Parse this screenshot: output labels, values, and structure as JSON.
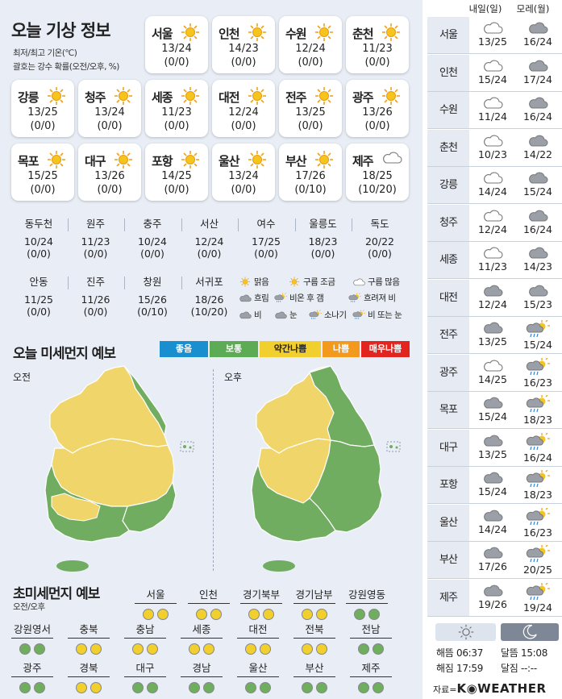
{
  "header": {
    "title": "오늘 기상 정보",
    "line1": "최저/최고 기온(℃)",
    "line2": "괄호는 강수 확률(오전/오후, %)"
  },
  "cards": [
    {
      "city": "서울",
      "temp": "13/24",
      "prob": "(0/0)",
      "icon": "sun-icon"
    },
    {
      "city": "인천",
      "temp": "14/23",
      "prob": "(0/0)",
      "icon": "sun-icon"
    },
    {
      "city": "수원",
      "temp": "12/24",
      "prob": "(0/0)",
      "icon": "sun-icon"
    },
    {
      "city": "춘천",
      "temp": "11/23",
      "prob": "(0/0)",
      "icon": "sun-icon"
    },
    {
      "city": "강릉",
      "temp": "13/25",
      "prob": "(0/0)",
      "icon": "sun-icon"
    },
    {
      "city": "청주",
      "temp": "13/24",
      "prob": "(0/0)",
      "icon": "sun-icon"
    },
    {
      "city": "세종",
      "temp": "11/23",
      "prob": "(0/0)",
      "icon": "sun-icon"
    },
    {
      "city": "대전",
      "temp": "12/24",
      "prob": "(0/0)",
      "icon": "sun-icon"
    },
    {
      "city": "전주",
      "temp": "13/25",
      "prob": "(0/0)",
      "icon": "sun-icon"
    },
    {
      "city": "광주",
      "temp": "13/26",
      "prob": "(0/0)",
      "icon": "sun-icon"
    },
    {
      "city": "목포",
      "temp": "15/25",
      "prob": "(0/0)",
      "icon": "sun-icon"
    },
    {
      "city": "대구",
      "temp": "13/26",
      "prob": "(0/0)",
      "icon": "sun-icon"
    },
    {
      "city": "포항",
      "temp": "14/25",
      "prob": "(0/0)",
      "icon": "sun-icon"
    },
    {
      "city": "울산",
      "temp": "13/24",
      "prob": "(0/0)",
      "icon": "sun-icon"
    },
    {
      "city": "부산",
      "temp": "17/26",
      "prob": "(0/10)",
      "icon": "sun-icon"
    },
    {
      "city": "제주",
      "temp": "18/25",
      "prob": "(10/20)",
      "icon": "cloud-icon"
    }
  ],
  "small_cities": [
    {
      "city": "동두천",
      "temp": "10/24",
      "prob": "(0/0)"
    },
    {
      "city": "원주",
      "temp": "11/23",
      "prob": "(0/0)"
    },
    {
      "city": "충주",
      "temp": "10/24",
      "prob": "(0/0)"
    },
    {
      "city": "서산",
      "temp": "12/24",
      "prob": "(0/0)"
    },
    {
      "city": "여수",
      "temp": "17/25",
      "prob": "(0/0)"
    },
    {
      "city": "울릉도",
      "temp": "18/23",
      "prob": "(0/0)"
    },
    {
      "city": "독도",
      "temp": "20/22",
      "prob": "(0/0)"
    },
    {
      "city": "안동",
      "temp": "11/25",
      "prob": "(0/0)"
    },
    {
      "city": "진주",
      "temp": "11/26",
      "prob": "(0/0)"
    },
    {
      "city": "창원",
      "temp": "15/26",
      "prob": "(0/10)"
    },
    {
      "city": "서귀포",
      "temp": "18/26",
      "prob": "(10/20)"
    }
  ],
  "legend": {
    "clear": "맑음",
    "few_clouds": "구름 조금",
    "many_clouds": "구름 많음",
    "overcast": "흐림",
    "rain_then_clear": "비온 후 갬",
    "cloudy_rain": "흐려져 비",
    "rain": "비",
    "snow": "눈",
    "shower": "소나기",
    "rain_or_snow": "비 또는 눈"
  },
  "dust": {
    "title": "오늘 미세먼지 예보",
    "scale": [
      {
        "label": "좋음",
        "color": "#1a8fd0"
      },
      {
        "label": "보통",
        "color": "#5dab54"
      },
      {
        "label": "약간나쁨",
        "color": "#f0cf2f"
      },
      {
        "label": "나쁨",
        "color": "#f39a1e"
      },
      {
        "label": "매우나쁨",
        "color": "#e2261f"
      }
    ],
    "am": "오전",
    "pm": "오후"
  },
  "pm25": {
    "title": "초미세먼지 예보",
    "subtitle": "오전/오후",
    "regions": [
      {
        "name": "서울",
        "am": "yellow",
        "pm": "yellow"
      },
      {
        "name": "인천",
        "am": "yellow",
        "pm": "yellow"
      },
      {
        "name": "경기북부",
        "am": "yellow",
        "pm": "yellow"
      },
      {
        "name": "경기남부",
        "am": "yellow",
        "pm": "yellow"
      },
      {
        "name": "강원영동",
        "am": "green",
        "pm": "green"
      },
      {
        "name": "강원영서",
        "am": "green",
        "pm": "green"
      },
      {
        "name": "충북",
        "am": "yellow",
        "pm": "yellow"
      },
      {
        "name": "충남",
        "am": "yellow",
        "pm": "yellow"
      },
      {
        "name": "세종",
        "am": "yellow",
        "pm": "yellow"
      },
      {
        "name": "대전",
        "am": "yellow",
        "pm": "yellow"
      },
      {
        "name": "전북",
        "am": "yellow",
        "pm": "yellow"
      },
      {
        "name": "전남",
        "am": "green",
        "pm": "green"
      },
      {
        "name": "광주",
        "am": "green",
        "pm": "green"
      },
      {
        "name": "경북",
        "am": "yellow",
        "pm": "yellow"
      },
      {
        "name": "대구",
        "am": "green",
        "pm": "green"
      },
      {
        "name": "경남",
        "am": "green",
        "pm": "green"
      },
      {
        "name": "울산",
        "am": "green",
        "pm": "green"
      },
      {
        "name": "부산",
        "am": "green",
        "pm": "green"
      },
      {
        "name": "제주",
        "am": "green",
        "pm": "green"
      }
    ]
  },
  "forecast": {
    "day1": "내일(일)",
    "day2": "모레(월)",
    "rows": [
      {
        "city": "서울",
        "d1": {
          "icon": "cloud-icon",
          "temp": "13/25"
        },
        "d2": {
          "icon": "overcast-icon",
          "temp": "16/24"
        }
      },
      {
        "city": "인천",
        "d1": {
          "icon": "cloud-icon",
          "temp": "15/24"
        },
        "d2": {
          "icon": "overcast-icon",
          "temp": "17/24"
        }
      },
      {
        "city": "수원",
        "d1": {
          "icon": "cloud-icon",
          "temp": "11/24"
        },
        "d2": {
          "icon": "overcast-icon",
          "temp": "16/24"
        }
      },
      {
        "city": "춘천",
        "d1": {
          "icon": "cloud-icon",
          "temp": "10/23"
        },
        "d2": {
          "icon": "overcast-icon",
          "temp": "14/22"
        }
      },
      {
        "city": "강릉",
        "d1": {
          "icon": "cloud-icon",
          "temp": "14/24"
        },
        "d2": {
          "icon": "overcast-icon",
          "temp": "15/24"
        }
      },
      {
        "city": "청주",
        "d1": {
          "icon": "cloud-icon",
          "temp": "12/24"
        },
        "d2": {
          "icon": "overcast-icon",
          "temp": "16/24"
        }
      },
      {
        "city": "세종",
        "d1": {
          "icon": "cloud-icon",
          "temp": "11/23"
        },
        "d2": {
          "icon": "overcast-icon",
          "temp": "14/23"
        }
      },
      {
        "city": "대전",
        "d1": {
          "icon": "overcast-icon",
          "temp": "12/24"
        },
        "d2": {
          "icon": "overcast-icon",
          "temp": "15/23"
        }
      },
      {
        "city": "전주",
        "d1": {
          "icon": "overcast-icon",
          "temp": "13/25"
        },
        "d2": {
          "icon": "rain-then-clear-icon",
          "temp": "15/24"
        }
      },
      {
        "city": "광주",
        "d1": {
          "icon": "cloud-icon",
          "temp": "14/25"
        },
        "d2": {
          "icon": "rain-then-clear-icon",
          "temp": "16/23"
        }
      },
      {
        "city": "목포",
        "d1": {
          "icon": "overcast-icon",
          "temp": "15/24"
        },
        "d2": {
          "icon": "rain-then-clear-icon",
          "temp": "18/23"
        }
      },
      {
        "city": "대구",
        "d1": {
          "icon": "overcast-icon",
          "temp": "13/25"
        },
        "d2": {
          "icon": "rain-then-clear-icon",
          "temp": "16/24"
        }
      },
      {
        "city": "포항",
        "d1": {
          "icon": "overcast-icon",
          "temp": "15/24"
        },
        "d2": {
          "icon": "rain-then-clear-icon",
          "temp": "18/23"
        }
      },
      {
        "city": "울산",
        "d1": {
          "icon": "overcast-icon",
          "temp": "14/24"
        },
        "d2": {
          "icon": "rain-then-clear-icon",
          "temp": "16/23"
        }
      },
      {
        "city": "부산",
        "d1": {
          "icon": "overcast-icon",
          "temp": "17/26"
        },
        "d2": {
          "icon": "rain-then-clear-icon",
          "temp": "20/25"
        }
      },
      {
        "city": "제주",
        "d1": {
          "icon": "overcast-icon",
          "temp": "19/26"
        },
        "d2": {
          "icon": "rain-then-clear-icon",
          "temp": "19/24"
        }
      }
    ]
  },
  "sun": {
    "sunrise": "해뜸 06:37",
    "sunset": "해짐 17:59",
    "moonrise": "달뜸 15:08",
    "moonset": "달짐 --:--"
  },
  "source": {
    "prefix": "자료=",
    "brand": "K◉WEATHER"
  }
}
